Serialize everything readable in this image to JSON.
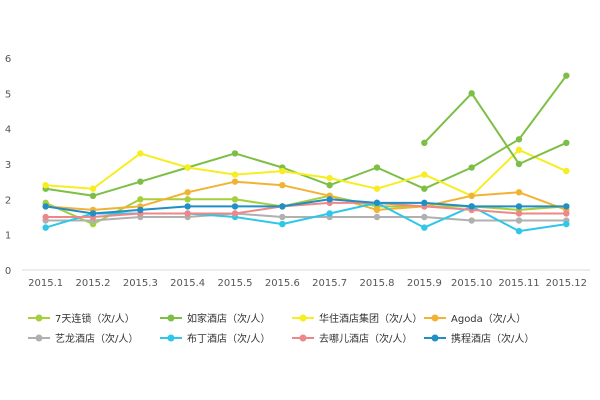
{
  "chart_data": {
    "type": "line",
    "title": "",
    "xlabel": "",
    "ylabel": "",
    "categories": [
      "2015.1",
      "2015.2",
      "2015.3",
      "2015.4",
      "2015.5",
      "2015.6",
      "2015.7",
      "2015.8",
      "2015.9",
      "2015.10",
      "2015.11",
      "2015.12"
    ],
    "ylim": [
      0,
      6
    ],
    "yticks": [
      "0",
      "1",
      "2",
      "3",
      "4",
      "5",
      "6"
    ],
    "grid": false,
    "legend_position": "bottom",
    "series": [
      {
        "name": "7天连锁（次/人）",
        "color": "#a6cf3c",
        "values": [
          1.9,
          1.3,
          2.0,
          2.0,
          2.0,
          1.8,
          2.1,
          1.8,
          1.8,
          1.8,
          1.7,
          1.8
        ]
      },
      {
        "name": "如家酒店（次/人）",
        "color": "#7dbf45",
        "values": [
          2.3,
          2.1,
          2.5,
          2.9,
          3.3,
          2.9,
          2.4,
          2.9,
          2.3,
          2.9,
          3.7,
          5.5
        ]
      },
      {
        "name": "华住酒店集团（次/人）",
        "color": "#f6ee22",
        "values": [
          2.4,
          2.3,
          3.3,
          2.9,
          2.7,
          2.8,
          2.6,
          2.3,
          2.7,
          2.1,
          3.4,
          2.8
        ]
      },
      {
        "name": "Agoda（次/人）",
        "color": "#f2b233",
        "values": [
          1.8,
          1.7,
          1.8,
          2.2,
          2.5,
          2.4,
          2.1,
          1.7,
          1.8,
          2.1,
          2.2,
          1.7
        ]
      },
      {
        "name": "艺龙酒店（次/人）",
        "color": "#b0b0b0",
        "values": [
          1.4,
          1.4,
          1.5,
          1.5,
          1.6,
          1.5,
          1.5,
          1.5,
          1.5,
          1.4,
          1.4,
          1.4
        ]
      },
      {
        "name": "布丁酒店（次/人）",
        "color": "#2fc7e8",
        "values": [
          1.2,
          1.6,
          1.6,
          1.6,
          1.5,
          1.3,
          1.6,
          1.9,
          1.2,
          1.8,
          1.1,
          1.3
        ]
      },
      {
        "name": "去哪儿酒店（次/人）",
        "color": "#ee8787",
        "values": [
          1.5,
          1.5,
          1.6,
          1.6,
          1.6,
          1.8,
          1.9,
          1.9,
          1.8,
          1.7,
          1.6,
          1.6
        ]
      },
      {
        "name": "携程酒店（次/人）",
        "color": "#1f8fc6",
        "values": [
          1.8,
          1.6,
          1.7,
          1.8,
          1.8,
          1.8,
          2.0,
          1.9,
          1.9,
          1.8,
          1.8,
          1.8
        ]
      },
      {
        "name": "",
        "color": "#7dbf45",
        "values": [
          null,
          null,
          null,
          null,
          null,
          null,
          null,
          null,
          3.6,
          5.0,
          3.0,
          3.6
        ]
      }
    ]
  }
}
